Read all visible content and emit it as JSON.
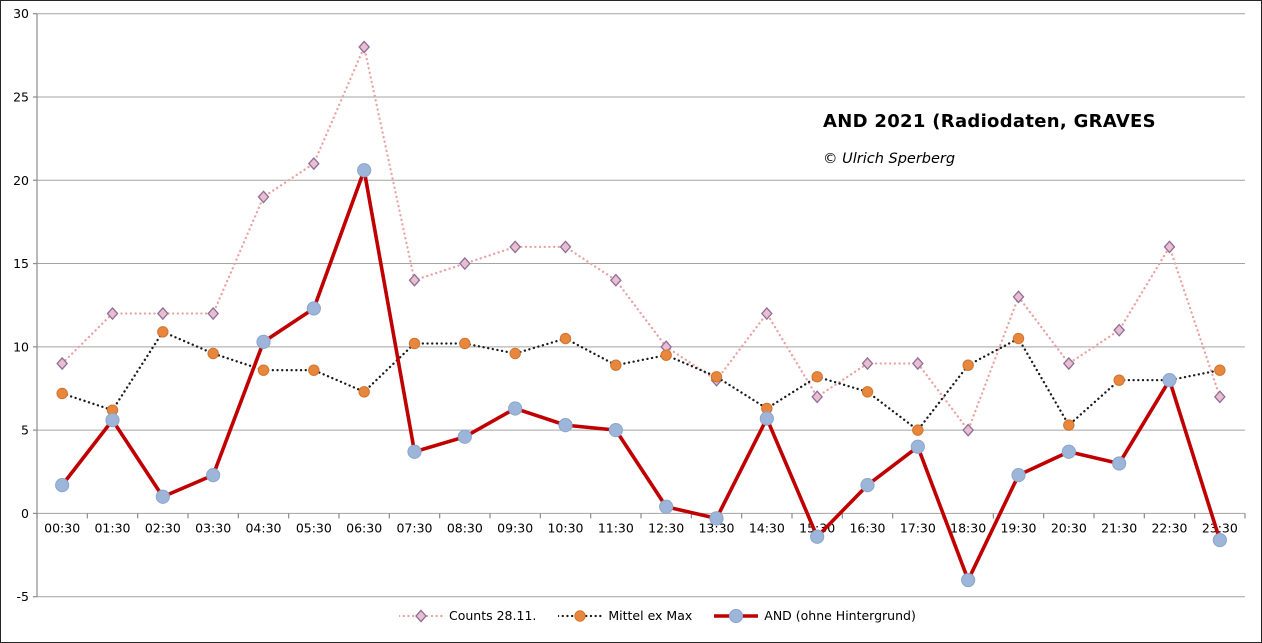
{
  "chart_data": {
    "type": "line",
    "title": "AND 2021 (Radiodaten, GRAVES",
    "subtitle": "© Ulrich Sperberg",
    "categories": [
      "00:30",
      "01:30",
      "02:30",
      "03:30",
      "04:30",
      "05:30",
      "06:30",
      "07:30",
      "08:30",
      "09:30",
      "10:30",
      "11:30",
      "12:30",
      "13:30",
      "14:30",
      "15:30",
      "16:30",
      "17:30",
      "18:30",
      "19:30",
      "20:30",
      "21:30",
      "22:30",
      "23:30"
    ],
    "series": [
      {
        "name": "Counts 28.11.",
        "values": [
          9,
          12,
          12,
          12,
          19,
          21,
          28,
          14,
          15,
          16,
          16,
          14,
          10,
          8,
          12,
          7,
          9,
          9,
          5,
          13,
          9,
          11,
          16,
          7
        ],
        "line_style": "dotted",
        "line_color": "#E9A2A2",
        "marker": "diamond",
        "marker_fill": "#E8BFCB",
        "marker_stroke": "#8E6C9E"
      },
      {
        "name": "Mittel ex Max",
        "values": [
          7.2,
          6.2,
          10.9,
          9.6,
          8.6,
          8.6,
          7.3,
          10.2,
          10.2,
          9.6,
          10.5,
          8.9,
          9.5,
          8.2,
          6.3,
          8.2,
          7.3,
          5.0,
          8.9,
          10.5,
          5.3,
          8.0,
          8.0,
          8.6
        ],
        "line_style": "dotted",
        "line_color": "#1A1A1A",
        "marker": "circle",
        "marker_fill": "#E8873C",
        "marker_stroke": "#CF7430"
      },
      {
        "name": "AND (ohne Hintergrund)",
        "values": [
          1.7,
          5.6,
          1.0,
          2.3,
          10.3,
          12.3,
          20.6,
          3.7,
          4.6,
          6.3,
          5.3,
          5.0,
          0.4,
          -0.3,
          5.7,
          -1.4,
          1.7,
          4.0,
          -4.0,
          2.3,
          3.7,
          3.0,
          8.0,
          -1.6
        ],
        "line_style": "solid",
        "line_color": "#C00000",
        "marker": "circle",
        "marker_fill": "#9CB5D9",
        "marker_stroke": "#8CA6CB"
      }
    ],
    "ylim": [
      -5,
      30
    ],
    "yticks": [
      30,
      25,
      20,
      15,
      10,
      5,
      0,
      -5
    ],
    "grid": "horizontal",
    "grid_color": "#A3A3A3",
    "axis_color": "#8C8C8C",
    "label_color": "#000000",
    "legend_position": "bottom",
    "xlabel": "",
    "ylabel": ""
  }
}
